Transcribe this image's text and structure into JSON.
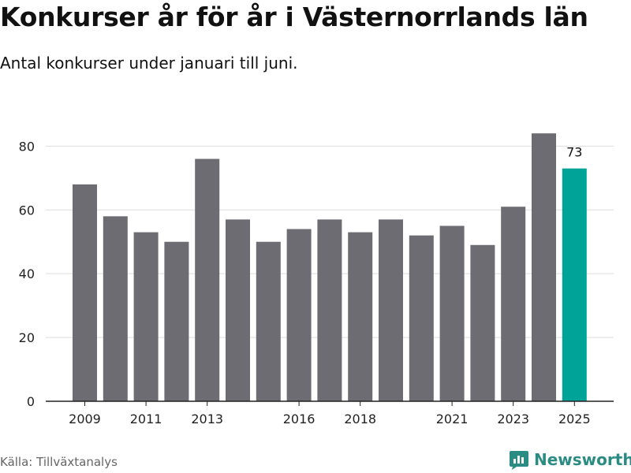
{
  "title": "Konkurser år för år i Västernorrlands län",
  "subtitle": "Antal konkurser under januari till juni.",
  "source": "Källa: Tillväxtanalys",
  "brand": "Newsworthy",
  "colors": {
    "bar": "#6d6c72",
    "highlight": "#00a398",
    "grid": "#dddddd",
    "brand": "#2a8c82"
  },
  "chart_data": {
    "type": "bar",
    "categories": [
      "2009",
      "2010",
      "2011",
      "2012",
      "2013",
      "2014",
      "2015",
      "2016",
      "2017",
      "2018",
      "2019",
      "2020",
      "2021",
      "2022",
      "2023",
      "2024",
      "2025"
    ],
    "values": [
      68,
      58,
      53,
      50,
      76,
      57,
      50,
      54,
      57,
      53,
      57,
      52,
      55,
      49,
      61,
      84,
      73
    ],
    "xticks": [
      "2009",
      "2011",
      "2013",
      "2016",
      "2018",
      "2021",
      "2023",
      "2025"
    ],
    "yticks": [
      0,
      20,
      40,
      60,
      80
    ],
    "ylim": [
      0,
      88
    ],
    "highlight_index": 16,
    "highlight_label": "73",
    "grid": true
  }
}
